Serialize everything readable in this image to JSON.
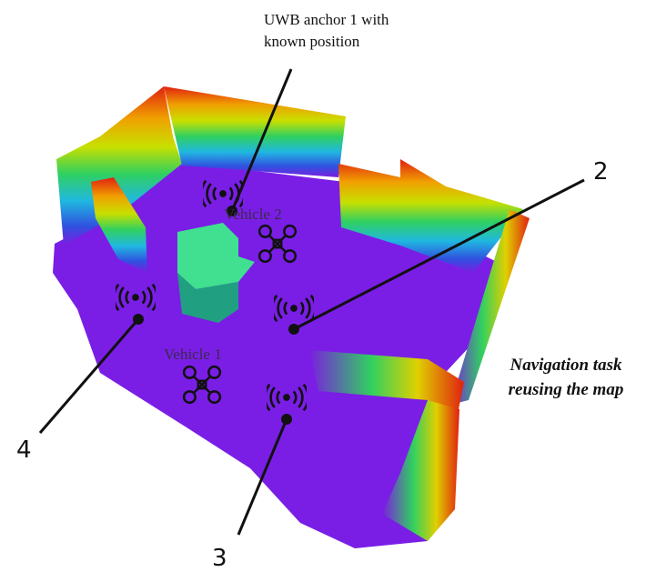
{
  "anchors": [
    {
      "label": [
        "UWB anchor 1 with",
        "known position"
      ]
    },
    {
      "label": "2"
    },
    {
      "label": "3"
    },
    {
      "label": "4"
    }
  ],
  "vehicles": [
    {
      "label": "Vehicle 2"
    },
    {
      "label": "Vehicle 1"
    }
  ],
  "caption": [
    "Navigation task",
    "reusing the map"
  ]
}
